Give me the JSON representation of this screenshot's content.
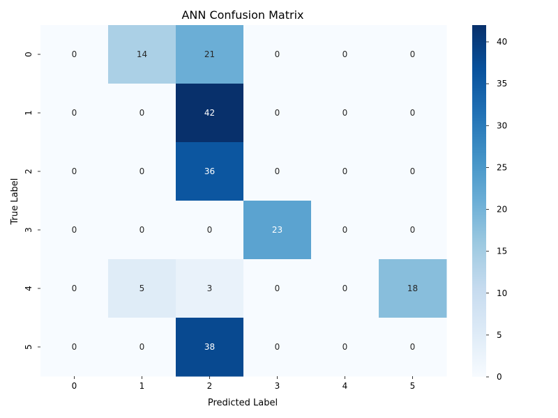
{
  "chart_data": {
    "type": "heatmap",
    "title": "ANN Confusion Matrix",
    "xlabel": "Predicted Label",
    "ylabel": "True Label",
    "x_categories": [
      "0",
      "1",
      "2",
      "3",
      "4",
      "5"
    ],
    "y_categories": [
      "0",
      "1",
      "2",
      "3",
      "4",
      "5"
    ],
    "values": [
      [
        0,
        14,
        21,
        0,
        0,
        0
      ],
      [
        0,
        0,
        42,
        0,
        0,
        0
      ],
      [
        0,
        0,
        36,
        0,
        0,
        0
      ],
      [
        0,
        0,
        0,
        23,
        0,
        0
      ],
      [
        0,
        5,
        3,
        0,
        0,
        18
      ],
      [
        0,
        0,
        38,
        0,
        0,
        0
      ]
    ],
    "colormap": "Blues",
    "vmin": 0,
    "vmax": 42,
    "colorbar_ticks": [
      "0",
      "5",
      "10",
      "15",
      "20",
      "25",
      "30",
      "35",
      "40"
    ],
    "annotations": true,
    "grid": false
  }
}
